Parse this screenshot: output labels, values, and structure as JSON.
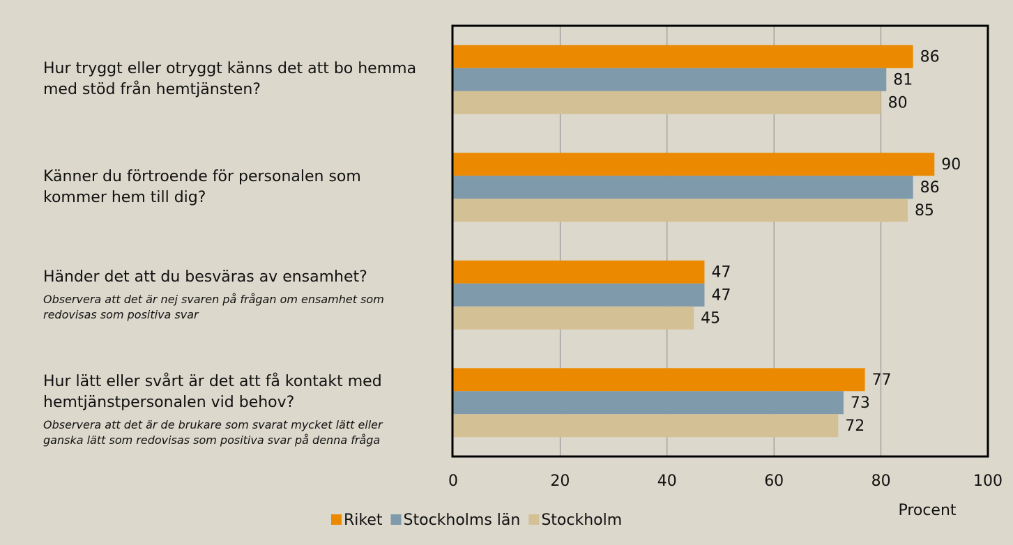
{
  "chart_data": {
    "type": "bar",
    "orientation": "horizontal",
    "categories": [
      "Hur tryggt eller otryggt känns det att bo hemma med stöd från hemtjänsten?",
      "Känner du förtroende för personalen som kommer hem till dig?",
      "Händer det att du besväras av ensamhet?",
      "Hur lätt eller svårt är det att få kontakt med hemtjänstpersonalen vid behov?"
    ],
    "category_notes": [
      null,
      null,
      "Observera att det är nej svaren på frågan om ensamhet som redovisas som positiva svar",
      "Observera att det är de brukare som svarat mycket lätt eller ganska lätt som redovisas som positiva svar på denna fråga"
    ],
    "series": [
      {
        "name": "Riket",
        "color": "#eb8a00",
        "values": [
          86,
          90,
          47,
          77
        ]
      },
      {
        "name": "Stockholms län",
        "color": "#7f9aab",
        "values": [
          81,
          86,
          47,
          73
        ]
      },
      {
        "name": "Stockholm",
        "color": "#d4c095",
        "values": [
          80,
          85,
          45,
          72
        ]
      }
    ],
    "xlabel": "Procent",
    "xlim": [
      0,
      100
    ],
    "xticks": [
      0,
      20,
      40,
      60,
      80,
      100
    ],
    "grid": true,
    "legend": "bottom"
  }
}
